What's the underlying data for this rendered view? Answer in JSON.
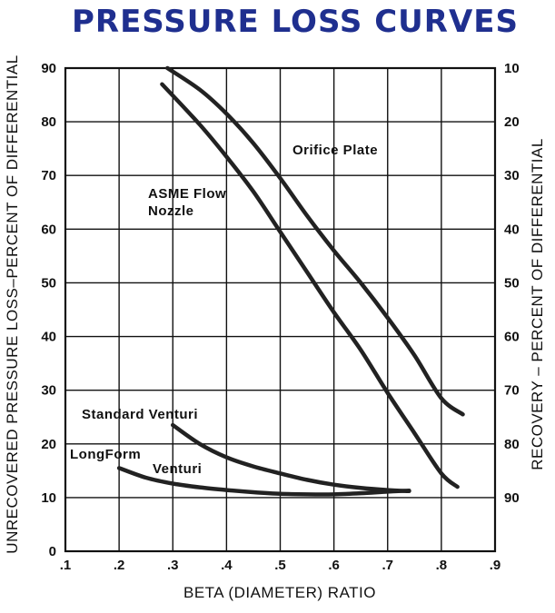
{
  "chart_data": {
    "type": "line",
    "title": "PRESSURE LOSS CURVES",
    "xlabel": "BETA (DIAMETER) RATIO",
    "ylabel": "UNRECOVERED PRESSURE LOSS–PERCENT OF DIFFERENTIAL",
    "ylabel_right": "RECOVERY – PERCENT OF DIFFERENTIAL",
    "xlim": [
      0.1,
      0.9
    ],
    "ylim": [
      0,
      90
    ],
    "grid": true,
    "x_ticks": [
      ".1",
      ".2",
      ".3",
      ".4",
      ".5",
      ".6",
      ".7",
      ".8",
      ".9"
    ],
    "y_ticks": [
      "0",
      "10",
      "20",
      "30",
      "40",
      "50",
      "60",
      "70",
      "80",
      "90"
    ],
    "y_right_ticks": [
      "90",
      "80",
      "70",
      "60",
      "50",
      "40",
      "30",
      "20",
      "10"
    ],
    "series": [
      {
        "name": "Orifice Plate",
        "x": [
          0.29,
          0.35,
          0.4,
          0.45,
          0.5,
          0.55,
          0.6,
          0.65,
          0.7,
          0.75,
          0.8,
          0.84
        ],
        "y": [
          90,
          86,
          81.5,
          76,
          69.5,
          62.5,
          56,
          50,
          43.5,
          36.5,
          28.5,
          25.5
        ]
      },
      {
        "name": "ASME Flow Nozzle",
        "x": [
          0.28,
          0.35,
          0.4,
          0.45,
          0.5,
          0.55,
          0.6,
          0.65,
          0.7,
          0.75,
          0.8,
          0.83
        ],
        "y": [
          87,
          79.5,
          73.5,
          67,
          59.5,
          52,
          44.5,
          37.5,
          29.5,
          22,
          14.5,
          12
        ]
      },
      {
        "name": "Standard Venturi",
        "x": [
          0.3,
          0.35,
          0.4,
          0.45,
          0.5,
          0.55,
          0.6,
          0.65,
          0.7,
          0.74
        ],
        "y": [
          23.5,
          20,
          17.5,
          15.8,
          14.5,
          13.3,
          12.4,
          11.8,
          11.4,
          11.2
        ]
      },
      {
        "name": "LongForm Venturi",
        "x": [
          0.2,
          0.25,
          0.3,
          0.35,
          0.4,
          0.45,
          0.5,
          0.55,
          0.6,
          0.65,
          0.7,
          0.74
        ],
        "y": [
          15.5,
          13.7,
          12.6,
          11.9,
          11.4,
          11,
          10.7,
          10.6,
          10.6,
          10.8,
          11.1,
          11.3
        ]
      }
    ],
    "annotations": {
      "orifice": "Orifice  Plate",
      "asme_line1": "ASME  Flow",
      "asme_line2": "Nozzle",
      "standard": "Standard  Venturi",
      "longform_line1": "LongForm",
      "longform_line2": "Venturi"
    }
  }
}
